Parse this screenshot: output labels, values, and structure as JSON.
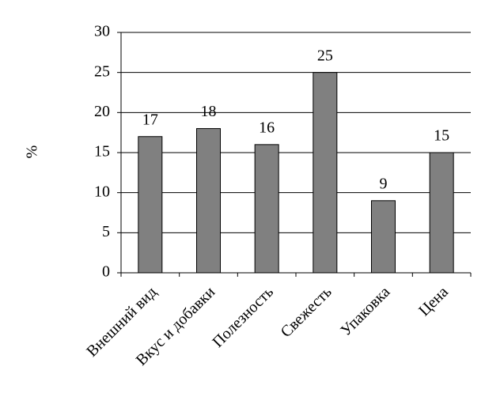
{
  "chart_data": {
    "type": "bar",
    "y_label": "%",
    "categories": [
      "Внешний вид",
      "Вкус и добавки",
      "Полезность",
      "Свежесть",
      "Упаковка",
      "Цена"
    ],
    "values": [
      17,
      18,
      16,
      25,
      9,
      15
    ],
    "color": "#808080",
    "ylim": [
      0,
      30
    ],
    "yticks": [
      0,
      5,
      10,
      15,
      20,
      25,
      30
    ],
    "grid": true
  }
}
